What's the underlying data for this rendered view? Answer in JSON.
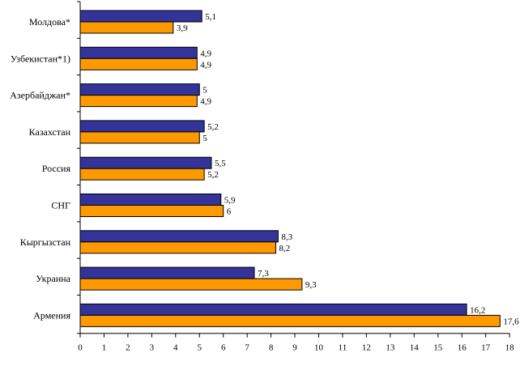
{
  "chart_data": {
    "type": "bar",
    "orientation": "horizontal",
    "categories": [
      "Молдова*",
      "Узбекистан*1)",
      "Азербайджан*",
      "Казахстан",
      "Россия",
      "СНГ",
      "Кыргызстан",
      "Украина",
      "Армения"
    ],
    "series": [
      {
        "color": "#333399",
        "values": [
          5.1,
          4.9,
          5,
          5.2,
          5.5,
          5.9,
          8.3,
          7.3,
          16.2
        ],
        "value_labels": [
          "5,1",
          "4,9",
          "5",
          "5,2",
          "5,5",
          "5,9",
          "8,3",
          "7,3",
          "16,2"
        ]
      },
      {
        "color": "#ff9900",
        "values": [
          3.9,
          4.9,
          4.9,
          5,
          5.2,
          6,
          8.2,
          9.3,
          17.6
        ],
        "value_labels": [
          "3,9",
          "4,9",
          "4,9",
          "5",
          "5,2",
          "6",
          "8,2",
          "9,3",
          "17,6"
        ]
      }
    ],
    "xlim": [
      0,
      18
    ],
    "x_ticks": [
      "0",
      "1",
      "2",
      "3",
      "4",
      "5",
      "6",
      "7",
      "8",
      "9",
      "10",
      "11",
      "12",
      "13",
      "14",
      "15",
      "16",
      "17",
      "18"
    ],
    "grid": false,
    "legend": "none",
    "title": "",
    "xlabel": "",
    "ylabel": ""
  }
}
